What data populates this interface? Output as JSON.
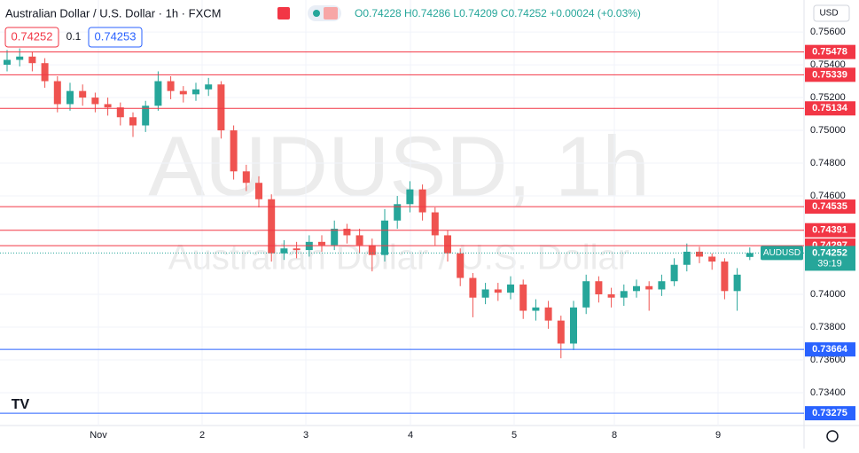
{
  "header": {
    "symbol": "Australian Dollar / U.S. Dollar · 1h · FXCM",
    "ohlc": "O0.74228 H0.74286 L0.74209 C0.74252 +0.00024 (+0.03%)",
    "sell": "0.74252",
    "spread": "0.1",
    "buy": "0.74253",
    "currency": "USD"
  },
  "chart_data": {
    "type": "candlestick",
    "watermark": "AUDUSD, 1h",
    "watermark_sub": "Australian Dollar / U.S. Dollar",
    "symbol": "AUDUSD",
    "countdown": "39:19",
    "up_color": "#26a69a",
    "down_color": "#ef5350",
    "open": [
      0.754,
      0.7543,
      0.7545,
      0.7541,
      0.753,
      0.7516,
      0.7524,
      0.752,
      0.7516,
      0.7514,
      0.7508,
      0.7503,
      0.7515,
      0.753,
      0.7524,
      0.7522,
      0.7525,
      0.7528,
      0.75,
      0.7475,
      0.7468,
      0.7458,
      0.7425,
      0.7428,
      0.7427,
      0.7432,
      0.743,
      0.744,
      0.7436,
      0.743,
      0.7424,
      0.7445,
      0.7455,
      0.7464,
      0.745,
      0.7436,
      0.7425,
      0.741,
      0.7398,
      0.7403,
      0.7401,
      0.7406,
      0.739,
      0.7392,
      0.7384,
      0.737,
      0.7392,
      0.7408,
      0.74,
      0.7398,
      0.7402,
      0.7405,
      0.7403,
      0.7408,
      0.7418,
      0.7426,
      0.7423,
      0.742,
      0.7402,
      0.74228
    ],
    "high": [
      0.7549,
      0.755,
      0.7548,
      0.7544,
      0.7533,
      0.7529,
      0.7528,
      0.7523,
      0.752,
      0.7517,
      0.7511,
      0.7518,
      0.7536,
      0.7533,
      0.7527,
      0.7529,
      0.7532,
      0.753,
      0.7503,
      0.7479,
      0.7472,
      0.7461,
      0.7433,
      0.7432,
      0.7436,
      0.7436,
      0.7445,
      0.7443,
      0.744,
      0.7434,
      0.7452,
      0.746,
      0.7469,
      0.7467,
      0.7453,
      0.7439,
      0.7428,
      0.7413,
      0.7407,
      0.7407,
      0.7411,
      0.7409,
      0.7397,
      0.7396,
      0.7387,
      0.7396,
      0.7412,
      0.7411,
      0.7404,
      0.7406,
      0.7409,
      0.7408,
      0.7412,
      0.7422,
      0.7431,
      0.7429,
      0.7425,
      0.7422,
      0.7416,
      0.74286
    ],
    "low": [
      0.7536,
      0.7539,
      0.7536,
      0.7526,
      0.7511,
      0.7512,
      0.7515,
      0.7511,
      0.7509,
      0.7503,
      0.7496,
      0.7499,
      0.7512,
      0.7519,
      0.7517,
      0.7518,
      0.7521,
      0.7495,
      0.747,
      0.7463,
      0.7453,
      0.742,
      0.7421,
      0.7422,
      0.7423,
      0.7426,
      0.7427,
      0.7431,
      0.7425,
      0.7414,
      0.742,
      0.744,
      0.745,
      0.7445,
      0.743,
      0.742,
      0.7405,
      0.7386,
      0.7394,
      0.7396,
      0.7397,
      0.7385,
      0.7384,
      0.7379,
      0.7361,
      0.7366,
      0.7388,
      0.7395,
      0.7392,
      0.7393,
      0.7398,
      0.739,
      0.7399,
      0.7405,
      0.7414,
      0.7419,
      0.7415,
      0.7397,
      0.739,
      0.74209
    ],
    "close": [
      0.7543,
      0.7545,
      0.7541,
      0.753,
      0.7516,
      0.7524,
      0.752,
      0.7516,
      0.7514,
      0.7508,
      0.7503,
      0.7515,
      0.753,
      0.7524,
      0.7522,
      0.7525,
      0.7528,
      0.75,
      0.7475,
      0.7468,
      0.7458,
      0.7425,
      0.7428,
      0.7427,
      0.7432,
      0.743,
      0.744,
      0.7436,
      0.743,
      0.7424,
      0.7445,
      0.7455,
      0.7464,
      0.745,
      0.7436,
      0.7425,
      0.741,
      0.7398,
      0.7403,
      0.7401,
      0.7406,
      0.739,
      0.7392,
      0.7384,
      0.737,
      0.7392,
      0.7408,
      0.74,
      0.7398,
      0.7402,
      0.7405,
      0.7403,
      0.7408,
      0.7418,
      0.7426,
      0.7423,
      0.742,
      0.7402,
      0.7412,
      0.74252
    ],
    "last": 0.74252,
    "levels": [
      {
        "value": 0.75478,
        "color": "#f23645"
      },
      {
        "value": 0.75339,
        "color": "#f23645"
      },
      {
        "value": 0.75134,
        "color": "#f23645"
      },
      {
        "value": 0.74535,
        "color": "#f23645"
      },
      {
        "value": 0.74391,
        "color": "#f23645"
      },
      {
        "value": 0.74297,
        "color": "#f23645"
      },
      {
        "value": 0.73664,
        "color": "#2962ff"
      },
      {
        "value": 0.73275,
        "color": "#2962ff"
      }
    ],
    "xtick_labels": [
      "Nov",
      "2",
      "3",
      "4",
      "5",
      "8",
      "9"
    ],
    "ylim": [
      0.732,
      0.75795
    ],
    "yticks": [
      {
        "value": 0.756,
        "label": "0.75600"
      },
      {
        "value": 0.754,
        "label": "0.75400"
      },
      {
        "value": 0.752,
        "label": "0.75200"
      },
      {
        "value": 0.75,
        "label": "0.75000"
      },
      {
        "value": 0.748,
        "label": "0.74800"
      },
      {
        "value": 0.746,
        "label": "0.74600"
      },
      {
        "value": 0.74,
        "label": "0.74000"
      },
      {
        "value": 0.738,
        "label": "0.73800"
      },
      {
        "value": 0.736,
        "label": "0.73600"
      },
      {
        "value": 0.734,
        "label": "0.73400"
      }
    ],
    "grid": true
  }
}
